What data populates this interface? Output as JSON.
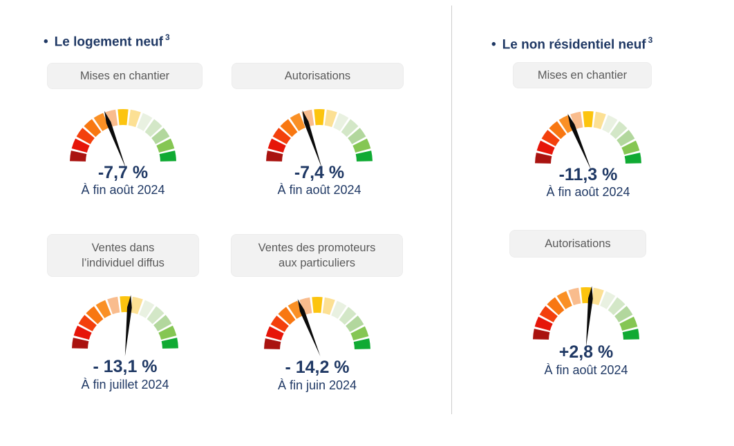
{
  "bullet": "•",
  "colors": {
    "heading": "#1f3864",
    "value_text": "#1f3864",
    "pill_bg": "#f2f2f2",
    "pill_text": "#595959",
    "divider": "#cccccc",
    "needle": "#0a0a0a"
  },
  "gauge_palette": [
    "#a91310",
    "#e61509",
    "#f3400c",
    "#f87711",
    "#fa9025",
    "#f9bc8d",
    "#fcc40f",
    "#fce094",
    "#e9f1e1",
    "#d3e7c7",
    "#b2d79d",
    "#85c653",
    "#10aa33"
  ],
  "sections": [
    {
      "title": "Le logement neuf",
      "title_sup": "3",
      "gauges": [
        {
          "label_line1": "Mises en chantier",
          "label_line2": "",
          "value": "-7,7 %",
          "date": "À fin août 2024",
          "needle_deg": -20
        },
        {
          "label_line1": "Autorisations",
          "label_line2": "",
          "value": "-7,4 %",
          "date": "À fin août 2024",
          "needle_deg": -18
        },
        {
          "label_line1": "Ventes dans",
          "label_line2": "l’individuel diffus",
          "value": "- 13,1 %",
          "date": "À fin juillet 2024",
          "needle_deg": 6
        },
        {
          "label_line1": "Ventes des promoteurs",
          "label_line2": "aux particuliers",
          "value": "- 14,2 %",
          "date": "À fin juin 2024",
          "needle_deg": -21
        }
      ]
    },
    {
      "title": "Le non résidentiel neuf",
      "title_sup": "3",
      "gauges": [
        {
          "label_line1": "Mises en chantier",
          "label_line2": "",
          "value": "-11,3 %",
          "date": "À fin août 2024",
          "needle_deg": -22
        },
        {
          "label_line1": "Autorisations",
          "label_line2": "",
          "value": "+2,8 %",
          "date": "À fin août 2024",
          "needle_deg": 6
        }
      ]
    }
  ],
  "chart_data": [
    {
      "type": "gauge",
      "section": "Le logement neuf",
      "indicator": "Mises en chantier",
      "value_pct": -7.7,
      "value_label": "-7,7 %",
      "period": "À fin août 2024",
      "needle_angle_deg": -20,
      "scale": "semicircle, 13 segments dark-red to green"
    },
    {
      "type": "gauge",
      "section": "Le logement neuf",
      "indicator": "Autorisations",
      "value_pct": -7.4,
      "value_label": "-7,4 %",
      "period": "À fin août 2024",
      "needle_angle_deg": -18,
      "scale": "semicircle, 13 segments dark-red to green"
    },
    {
      "type": "gauge",
      "section": "Le logement neuf",
      "indicator": "Ventes dans l’individuel diffus",
      "value_pct": -13.1,
      "value_label": "- 13,1 %",
      "period": "À fin juillet 2024",
      "needle_angle_deg": 6,
      "scale": "semicircle, 13 segments dark-red to green"
    },
    {
      "type": "gauge",
      "section": "Le logement neuf",
      "indicator": "Ventes des promoteurs aux particuliers",
      "value_pct": -14.2,
      "value_label": "- 14,2 %",
      "period": "À fin juin 2024",
      "needle_angle_deg": -21,
      "scale": "semicircle, 13 segments dark-red to green"
    },
    {
      "type": "gauge",
      "section": "Le non résidentiel neuf",
      "indicator": "Mises en chantier",
      "value_pct": -11.3,
      "value_label": "-11,3 %",
      "period": "À fin août 2024",
      "needle_angle_deg": -22,
      "scale": "semicircle, 13 segments dark-red to green"
    },
    {
      "type": "gauge",
      "section": "Le non résidentiel neuf",
      "indicator": "Autorisations",
      "value_pct": 2.8,
      "value_label": "+2,8 %",
      "period": "À fin août 2024",
      "needle_angle_deg": 6,
      "scale": "semicircle, 13 segments dark-red to green"
    }
  ]
}
